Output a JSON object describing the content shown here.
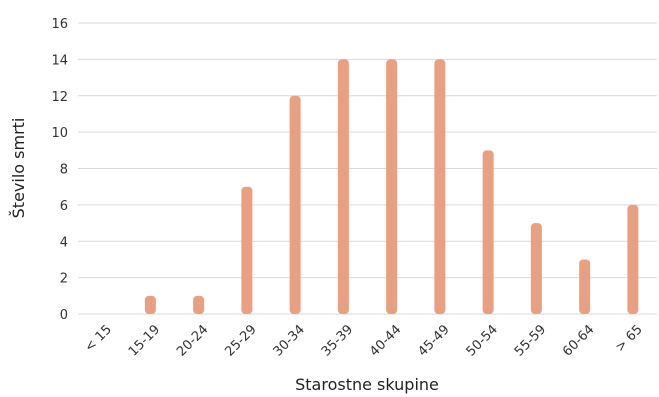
{
  "chart_data": {
    "type": "bar",
    "title": "",
    "xlabel": "Starostne skupine",
    "ylabel": "Število smrti",
    "categories": [
      "< 15",
      "15-19",
      "20-24",
      "25-29",
      "30-34",
      "35-39",
      "40-44",
      "45-49",
      "50-54",
      "55-59",
      "60-64",
      "> 65"
    ],
    "values": [
      0,
      1,
      1,
      7,
      12,
      14,
      14,
      14,
      9,
      5,
      3,
      6
    ],
    "yticks": [
      0,
      2,
      4,
      6,
      8,
      10,
      12,
      14,
      16
    ],
    "ylim": [
      0,
      16
    ],
    "grid": true,
    "bar_color": "#e8a083"
  }
}
